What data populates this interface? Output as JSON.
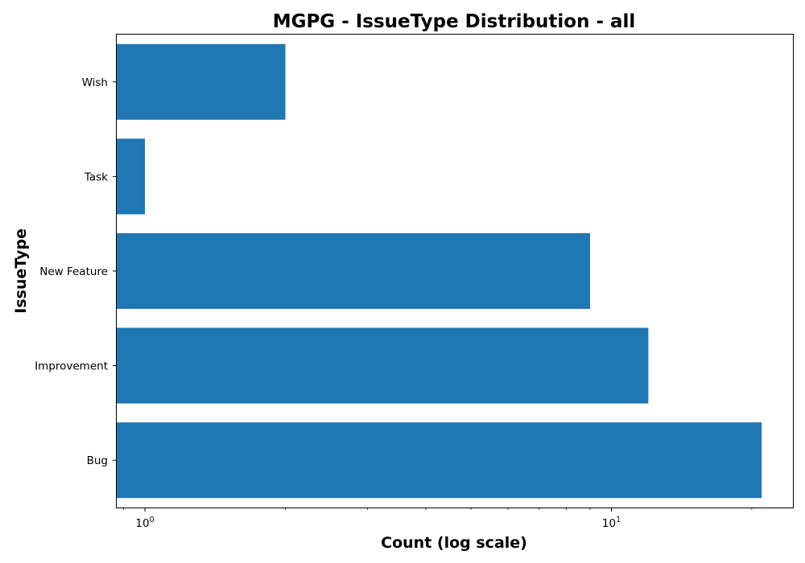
{
  "chart_data": {
    "type": "bar",
    "orientation": "horizontal",
    "title": "MGPG - IssueType Distribution - all",
    "xlabel": "Count (log scale)",
    "ylabel": "IssueType",
    "x_scale": "log",
    "x_ticks": [
      {
        "value": 1,
        "base": "10",
        "exp": "0"
      },
      {
        "value": 10,
        "base": "10",
        "exp": "1"
      }
    ],
    "xlim": [
      0.87,
      24.5
    ],
    "categories": [
      "Bug",
      "Improvement",
      "New Feature",
      "Task",
      "Wish"
    ],
    "values": [
      21,
      12,
      9,
      1,
      2
    ],
    "grid": false,
    "legend": "none",
    "bar_color": "#1f77b4"
  }
}
